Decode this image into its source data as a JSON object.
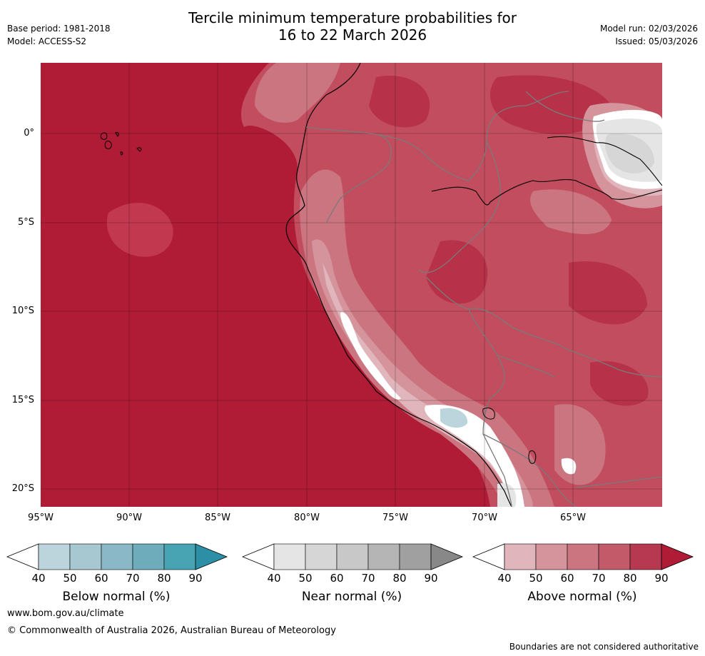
{
  "title_line1": "Tercile minimum temperature probabilities for",
  "title_line2": "16 to 22 March 2026",
  "meta_left": {
    "base_period": "Base period: 1981-2018",
    "model": "Model: ACCESS-S2"
  },
  "meta_right": {
    "model_run": "Model run: 02/03/2026",
    "issued": "Issued: 05/03/2026"
  },
  "lat_labels": [
    "0°",
    "5°S",
    "10°S",
    "15°S",
    "20°S"
  ],
  "lon_labels": [
    "95°W",
    "90°W",
    "85°W",
    "80°W",
    "75°W",
    "70°W",
    "65°W"
  ],
  "colorbars": [
    {
      "label": "Below normal (%)",
      "ticks": [
        "40",
        "50",
        "60",
        "70",
        "80",
        "90"
      ],
      "colors": [
        "#ffffff",
        "#bcd5dd",
        "#a7c8d1",
        "#8bb8c6",
        "#6eabbb",
        "#48a3b3",
        "#2d8fa6"
      ]
    },
    {
      "label": "Near normal (%)",
      "ticks": [
        "40",
        "50",
        "60",
        "70",
        "80",
        "90"
      ],
      "colors": [
        "#ffffff",
        "#e5e5e5",
        "#d6d6d6",
        "#c8c8c8",
        "#b5b5b5",
        "#a0a0a0",
        "#888888"
      ]
    },
    {
      "label": "Above normal (%)",
      "ticks": [
        "40",
        "50",
        "60",
        "70",
        "80",
        "90"
      ],
      "colors": [
        "#ffffff",
        "#e1b5bc",
        "#d5939c",
        "#cb7580",
        "#c25a69",
        "#b73851",
        "#b01c36"
      ]
    }
  ],
  "footer": {
    "url": "www.bom.gov.au/climate",
    "copyright": "© Commonwealth of Australia 2026, Australian Bureau of Meteorology",
    "disclaimer": "Boundaries are not considered authoritative"
  }
}
